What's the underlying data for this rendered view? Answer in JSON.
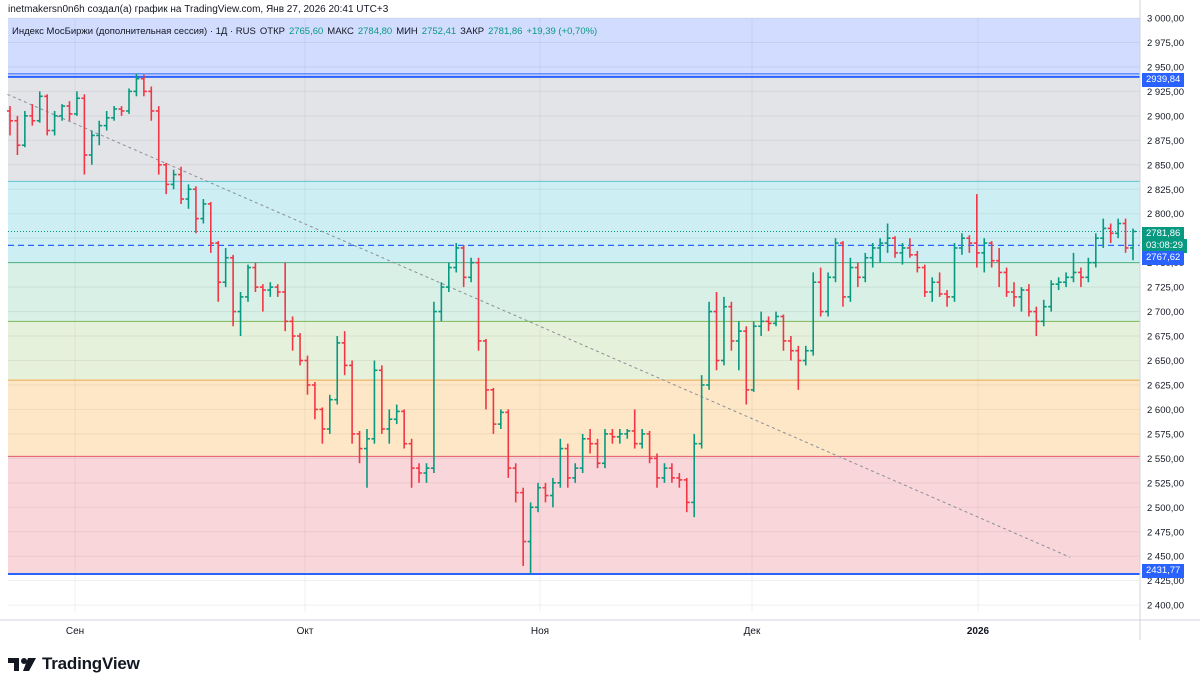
{
  "header": {
    "attribution": "inetmakersn0n6h создал(а) график на TradingView.com, Янв 27, 2026 20:41 UTC+3"
  },
  "legend": {
    "symbol": "Индекс МосБиржи (дополнительная сессия) · 1Д · RUS",
    "open_label": "ОТКР",
    "open_value": "2765,60",
    "high_label": "МАКС",
    "high_value": "2784,80",
    "low_label": "МИН",
    "low_value": "2752,41",
    "close_label": "ЗАКР",
    "close_value": "2781,86",
    "change": "+19,39 (+0,70%)"
  },
  "price_badges": {
    "top_level": "2939,84",
    "last_price": "2781,86",
    "countdown": "03:08:29",
    "mid_level": "2767,62",
    "bottom_level": "2431,77"
  },
  "logo": {
    "text": "TradingView",
    "icon": "tradingview-logo-icon"
  },
  "colors": {
    "up": "#089981",
    "down": "#f23645",
    "level_line": "#2962ff",
    "zone_blue": "#d1dcff",
    "zone_grey": "#e3e4e8",
    "zone_cyan": "#cdeff3",
    "zone_teal": "#d8f0e6",
    "zone_green": "#e6f1dc",
    "zone_orange": "#fde7c6",
    "zone_red": "#f9d6da"
  },
  "chart_data": {
    "type": "bar",
    "x_labels": [
      "Сен",
      "Окт",
      "Ноя",
      "Дек",
      "2026"
    ],
    "y_ticks": [
      "2 400,00",
      "2 425,00",
      "2 450,00",
      "2 475,00",
      "2 500,00",
      "2 525,00",
      "2 550,00",
      "2 575,00",
      "2 600,00",
      "2 625,00",
      "2 650,00",
      "2 675,00",
      "2 700,00",
      "2 725,00",
      "2 750,00",
      "2 775,00",
      "2 800,00",
      "2 825,00",
      "2 850,00",
      "2 875,00",
      "2 900,00",
      "2 925,00",
      "2 950,00",
      "2 975,00",
      "3 000,00"
    ],
    "ylim": [
      2393,
      3000
    ],
    "grid": true,
    "horizontal_levels": [
      2939.84,
      2833,
      2750,
      2690,
      2630,
      2552,
      2431.77
    ],
    "zones": [
      {
        "from": 2939.84,
        "to": 3000,
        "color": "zone_blue"
      },
      {
        "from": 2833,
        "to": 2939.84,
        "color": "zone_grey"
      },
      {
        "from": 2750,
        "to": 2833,
        "color": "zone_cyan"
      },
      {
        "from": 2690,
        "to": 2750,
        "color": "zone_teal"
      },
      {
        "from": 2630,
        "to": 2690,
        "color": "zone_green"
      },
      {
        "from": 2552,
        "to": 2630,
        "color": "zone_orange"
      },
      {
        "from": 2431.77,
        "to": 2552,
        "color": "zone_red"
      }
    ],
    "dashed_level": 2767.62,
    "trendline": {
      "from": [
        1,
        2922
      ],
      "to": [
        142,
        2449
      ]
    },
    "ohlc": [
      [
        2905,
        2910,
        2880,
        2895
      ],
      [
        2895,
        2900,
        2860,
        2870
      ],
      [
        2870,
        2905,
        2868,
        2900
      ],
      [
        2900,
        2912,
        2890,
        2895
      ],
      [
        2895,
        2925,
        2893,
        2920
      ],
      [
        2920,
        2922,
        2880,
        2885
      ],
      [
        2885,
        2905,
        2880,
        2900
      ],
      [
        2900,
        2912,
        2895,
        2910
      ],
      [
        2910,
        2915,
        2895,
        2902
      ],
      [
        2902,
        2925,
        2900,
        2918
      ],
      [
        2918,
        2922,
        2840,
        2860
      ],
      [
        2860,
        2885,
        2850,
        2880
      ],
      [
        2880,
        2895,
        2870,
        2890
      ],
      [
        2890,
        2905,
        2885,
        2898
      ],
      [
        2898,
        2910,
        2895,
        2907
      ],
      [
        2907,
        2910,
        2900,
        2905
      ],
      [
        2905,
        2928,
        2902,
        2925
      ],
      [
        2925,
        2943,
        2920,
        2938
      ],
      [
        2938,
        2942,
        2920,
        2925
      ],
      [
        2925,
        2930,
        2895,
        2905
      ],
      [
        2905,
        2910,
        2840,
        2850
      ],
      [
        2850,
        2852,
        2820,
        2830
      ],
      [
        2830,
        2845,
        2825,
        2840
      ],
      [
        2840,
        2848,
        2810,
        2815
      ],
      [
        2815,
        2830,
        2805,
        2825
      ],
      [
        2825,
        2828,
        2780,
        2795
      ],
      [
        2795,
        2815,
        2790,
        2810
      ],
      [
        2810,
        2812,
        2760,
        2770
      ],
      [
        2770,
        2772,
        2710,
        2730
      ],
      [
        2730,
        2765,
        2725,
        2755
      ],
      [
        2755,
        2758,
        2685,
        2700
      ],
      [
        2700,
        2720,
        2675,
        2715
      ],
      [
        2715,
        2748,
        2710,
        2745
      ],
      [
        2745,
        2750,
        2720,
        2725
      ],
      [
        2725,
        2728,
        2700,
        2722
      ],
      [
        2722,
        2730,
        2715,
        2725
      ],
      [
        2725,
        2728,
        2715,
        2720
      ],
      [
        2720,
        2750,
        2680,
        2690
      ],
      [
        2690,
        2695,
        2660,
        2675
      ],
      [
        2675,
        2678,
        2645,
        2650
      ],
      [
        2650,
        2655,
        2615,
        2625
      ],
      [
        2625,
        2628,
        2590,
        2600
      ],
      [
        2600,
        2602,
        2565,
        2580
      ],
      [
        2580,
        2615,
        2575,
        2610
      ],
      [
        2610,
        2675,
        2605,
        2668
      ],
      [
        2668,
        2680,
        2635,
        2645
      ],
      [
        2645,
        2650,
        2565,
        2575
      ],
      [
        2575,
        2578,
        2545,
        2560
      ],
      [
        2560,
        2580,
        2520,
        2570
      ],
      [
        2570,
        2650,
        2565,
        2640
      ],
      [
        2640,
        2645,
        2575,
        2580
      ],
      [
        2580,
        2600,
        2565,
        2590
      ],
      [
        2590,
        2605,
        2585,
        2598
      ],
      [
        2598,
        2600,
        2560,
        2565
      ],
      [
        2565,
        2570,
        2520,
        2540
      ],
      [
        2540,
        2545,
        2525,
        2535
      ],
      [
        2535,
        2545,
        2525,
        2540
      ],
      [
        2540,
        2710,
        2535,
        2700
      ],
      [
        2700,
        2730,
        2690,
        2725
      ],
      [
        2725,
        2750,
        2720,
        2745
      ],
      [
        2745,
        2770,
        2740,
        2765
      ],
      [
        2765,
        2768,
        2725,
        2735
      ],
      [
        2735,
        2755,
        2730,
        2750
      ],
      [
        2750,
        2755,
        2660,
        2670
      ],
      [
        2670,
        2672,
        2600,
        2620
      ],
      [
        2620,
        2622,
        2575,
        2585
      ],
      [
        2585,
        2600,
        2580,
        2597
      ],
      [
        2597,
        2600,
        2530,
        2540
      ],
      [
        2540,
        2545,
        2505,
        2515
      ],
      [
        2515,
        2520,
        2440,
        2465
      ],
      [
        2465,
        2505,
        2432,
        2500
      ],
      [
        2500,
        2525,
        2495,
        2520
      ],
      [
        2520,
        2525,
        2505,
        2512
      ],
      [
        2512,
        2530,
        2500,
        2525
      ],
      [
        2525,
        2570,
        2520,
        2560
      ],
      [
        2560,
        2565,
        2520,
        2530
      ],
      [
        2530,
        2545,
        2525,
        2540
      ],
      [
        2540,
        2575,
        2535,
        2570
      ],
      [
        2570,
        2580,
        2555,
        2565
      ],
      [
        2565,
        2570,
        2540,
        2545
      ],
      [
        2545,
        2580,
        2540,
        2575
      ],
      [
        2575,
        2580,
        2565,
        2572
      ],
      [
        2572,
        2580,
        2565,
        2575
      ],
      [
        2575,
        2580,
        2570,
        2578
      ],
      [
        2578,
        2600,
        2560,
        2565
      ],
      [
        2565,
        2580,
        2560,
        2575
      ],
      [
        2575,
        2578,
        2545,
        2550
      ],
      [
        2550,
        2555,
        2520,
        2530
      ],
      [
        2530,
        2545,
        2525,
        2540
      ],
      [
        2540,
        2545,
        2525,
        2530
      ],
      [
        2530,
        2535,
        2520,
        2528
      ],
      [
        2528,
        2530,
        2495,
        2505
      ],
      [
        2505,
        2575,
        2490,
        2565
      ],
      [
        2565,
        2635,
        2560,
        2625
      ],
      [
        2625,
        2710,
        2620,
        2700
      ],
      [
        2700,
        2720,
        2640,
        2650
      ],
      [
        2650,
        2715,
        2645,
        2705
      ],
      [
        2705,
        2710,
        2660,
        2670
      ],
      [
        2670,
        2690,
        2640,
        2680
      ],
      [
        2680,
        2685,
        2605,
        2620
      ],
      [
        2620,
        2690,
        2618,
        2685
      ],
      [
        2685,
        2700,
        2675,
        2690
      ],
      [
        2690,
        2695,
        2680,
        2688
      ],
      [
        2688,
        2700,
        2685,
        2695
      ],
      [
        2695,
        2697,
        2660,
        2670
      ],
      [
        2670,
        2675,
        2650,
        2660
      ],
      [
        2660,
        2665,
        2620,
        2650
      ],
      [
        2650,
        2665,
        2645,
        2660
      ],
      [
        2660,
        2740,
        2655,
        2730
      ],
      [
        2730,
        2745,
        2695,
        2700
      ],
      [
        2700,
        2740,
        2695,
        2735
      ],
      [
        2735,
        2775,
        2730,
        2770
      ],
      [
        2770,
        2772,
        2705,
        2715
      ],
      [
        2715,
        2755,
        2710,
        2745
      ],
      [
        2745,
        2750,
        2725,
        2735
      ],
      [
        2735,
        2760,
        2730,
        2755
      ],
      [
        2755,
        2770,
        2745,
        2765
      ],
      [
        2765,
        2775,
        2750,
        2770
      ],
      [
        2770,
        2790,
        2760,
        2775
      ],
      [
        2775,
        2777,
        2755,
        2760
      ],
      [
        2760,
        2770,
        2748,
        2765
      ],
      [
        2765,
        2775,
        2755,
        2758
      ],
      [
        2758,
        2762,
        2740,
        2745
      ],
      [
        2745,
        2748,
        2715,
        2720
      ],
      [
        2720,
        2735,
        2710,
        2730
      ],
      [
        2730,
        2740,
        2715,
        2718
      ],
      [
        2718,
        2722,
        2705,
        2715
      ],
      [
        2715,
        2770,
        2710,
        2765
      ],
      [
        2765,
        2780,
        2758,
        2775
      ],
      [
        2775,
        2778,
        2760,
        2770
      ],
      [
        2770,
        2820,
        2745,
        2760
      ],
      [
        2760,
        2775,
        2740,
        2770
      ],
      [
        2770,
        2772,
        2745,
        2752
      ],
      [
        2752,
        2765,
        2725,
        2740
      ],
      [
        2740,
        2745,
        2715,
        2720
      ],
      [
        2720,
        2730,
        2705,
        2715
      ],
      [
        2715,
        2725,
        2700,
        2722
      ],
      [
        2722,
        2728,
        2695,
        2700
      ],
      [
        2700,
        2705,
        2675,
        2690
      ],
      [
        2690,
        2712,
        2685,
        2705
      ],
      [
        2705,
        2732,
        2700,
        2728
      ],
      [
        2728,
        2735,
        2722,
        2730
      ],
      [
        2730,
        2740,
        2725,
        2735
      ],
      [
        2735,
        2760,
        2730,
        2740
      ],
      [
        2740,
        2745,
        2725,
        2735
      ],
      [
        2735,
        2755,
        2730,
        2750
      ],
      [
        2750,
        2780,
        2745,
        2775
      ],
      [
        2775,
        2795,
        2765,
        2785
      ],
      [
        2785,
        2790,
        2770,
        2780
      ],
      [
        2780,
        2795,
        2775,
        2790
      ],
      [
        2790,
        2795,
        2760,
        2765
      ],
      [
        2765,
        2784.8,
        2752.41,
        2781.86
      ]
    ]
  }
}
